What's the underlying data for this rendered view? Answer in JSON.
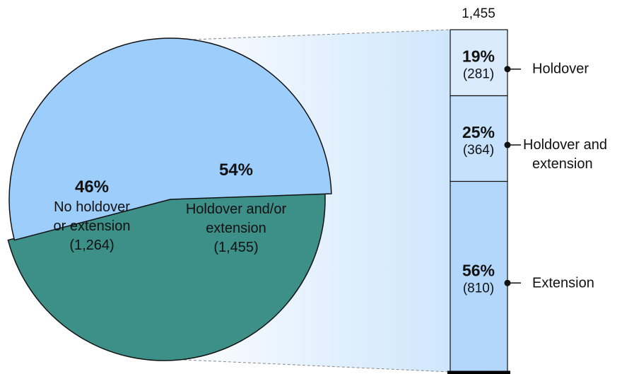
{
  "chart_data": {
    "type": "pie",
    "pie": {
      "slices": [
        {
          "percent": "46%",
          "label_line1": "No holdover",
          "label_line2": "or extension",
          "count": "(1,264)",
          "value": 1264,
          "color": "#3d9088"
        },
        {
          "percent": "54%",
          "label_line1": "Holdover and/or",
          "label_line2": "extension",
          "count": "(1,455)",
          "value": 1455,
          "color": "#9ccdfb"
        }
      ]
    },
    "breakdown": {
      "type": "stacked-bar",
      "total_label": "1,455",
      "total": 1455,
      "segments": [
        {
          "percent": "19%",
          "count": "(281)",
          "value": 281,
          "label_line1": "Holdover",
          "label_line2": "",
          "color": "#d9ebfd"
        },
        {
          "percent": "25%",
          "count": "(364)",
          "value": 364,
          "label_line1": "Holdover and",
          "label_line2": "extension",
          "color": "#c6e1fc"
        },
        {
          "percent": "56%",
          "count": "(810)",
          "value": 810,
          "label_line1": "Extension",
          "label_line2": "",
          "color": "#b3d7fb"
        }
      ]
    }
  }
}
